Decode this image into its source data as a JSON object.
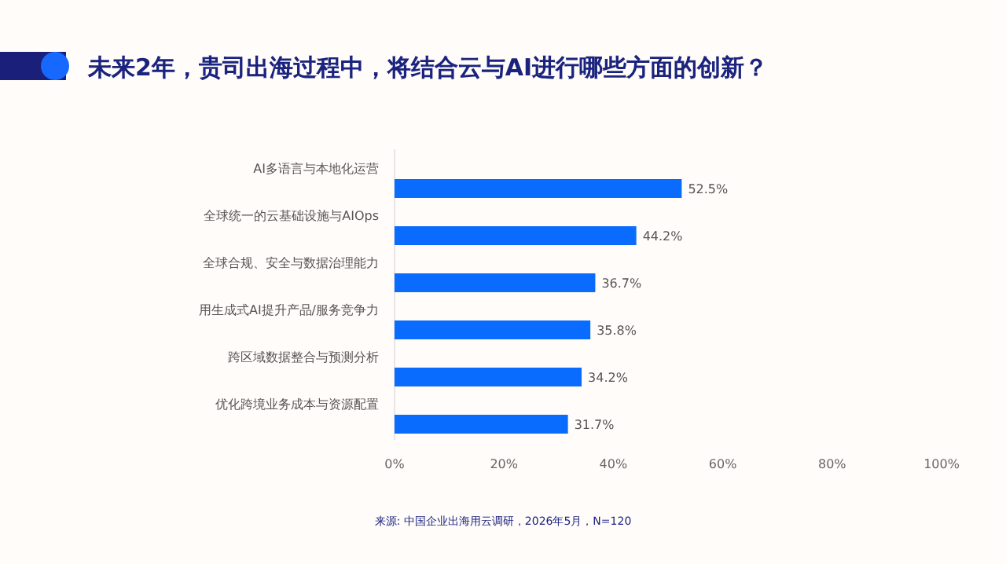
{
  "chart_data": {
    "type": "bar",
    "orientation": "horizontal",
    "title": "未来2年，贵司出海过程中，将结合云与AI进行哪些方面的创新？",
    "categories": [
      "AI多语言与本地化运营",
      "全球统一的云基础设施与AIOps",
      "全球合规、安全与数据治理能力",
      "用生成式AI提升产品/服务竞争力",
      "跨区域数据整合与预测分析",
      "优化跨境业务成本与资源配置"
    ],
    "values": [
      52.5,
      44.2,
      36.7,
      35.8,
      34.2,
      31.7
    ],
    "value_labels": [
      "52.5%",
      "44.2%",
      "36.7%",
      "35.8%",
      "34.2%",
      "31.7%"
    ],
    "color": "#0a6cff",
    "xlim": [
      0,
      100
    ],
    "xticks": [
      {
        "value": 0,
        "label": "0%"
      },
      {
        "value": 20,
        "label": "20%"
      },
      {
        "value": 40,
        "label": "40%"
      },
      {
        "value": 60,
        "label": "60%"
      },
      {
        "value": 80,
        "label": "80%"
      },
      {
        "value": 100,
        "label": "100%"
      }
    ],
    "annotations": [
      "来源: 中国企业出海用云调研，2026年5月，N=120"
    ]
  }
}
